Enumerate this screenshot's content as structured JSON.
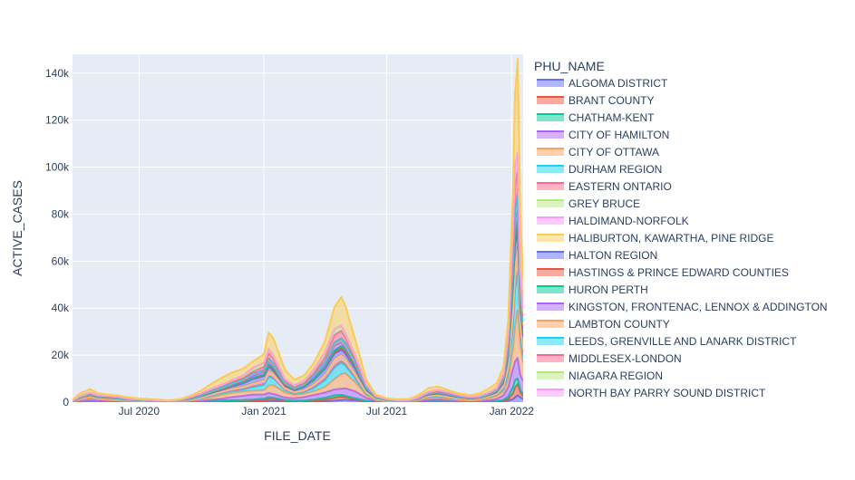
{
  "chart_data": {
    "type": "area",
    "stacked": true,
    "xlabel": "FILE_DATE",
    "ylabel": "ACTIVE_CASES",
    "x_ticks": [
      {
        "label": "Jul 2020",
        "date": "2020-07-01"
      },
      {
        "label": "Jan 2021",
        "date": "2021-01-01"
      },
      {
        "label": "Jul 2021",
        "date": "2021-07-01"
      },
      {
        "label": "Jan 2022",
        "date": "2022-01-01"
      }
    ],
    "xlim": [
      "2020-03-25",
      "2022-01-18"
    ],
    "y_ticks": [
      {
        "label": "0",
        "value": 0
      },
      {
        "label": "20k",
        "value": 20000
      },
      {
        "label": "40k",
        "value": 40000
      },
      {
        "label": "60k",
        "value": 60000
      },
      {
        "label": "80k",
        "value": 80000
      },
      {
        "label": "100k",
        "value": 100000
      },
      {
        "label": "120k",
        "value": 120000
      },
      {
        "label": "140k",
        "value": 140000
      }
    ],
    "ylim": [
      0,
      148000
    ],
    "grid": true,
    "legend": {
      "title": "PHU_NAME",
      "placement": "right"
    },
    "total": {
      "dates": [
        "2020-03-25",
        "2020-04-05",
        "2020-04-20",
        "2020-05-01",
        "2020-05-15",
        "2020-06-01",
        "2020-06-15",
        "2020-07-01",
        "2020-07-15",
        "2020-08-01",
        "2020-08-15",
        "2020-09-01",
        "2020-09-15",
        "2020-10-01",
        "2020-10-15",
        "2020-11-01",
        "2020-11-15",
        "2020-12-01",
        "2020-12-15",
        "2021-01-01",
        "2021-01-08",
        "2021-01-15",
        "2021-02-01",
        "2021-02-15",
        "2021-03-01",
        "2021-03-15",
        "2021-04-01",
        "2021-04-15",
        "2021-04-25",
        "2021-05-01",
        "2021-05-15",
        "2021-06-01",
        "2021-06-15",
        "2021-07-01",
        "2021-07-15",
        "2021-08-01",
        "2021-08-15",
        "2021-09-01",
        "2021-09-15",
        "2021-10-01",
        "2021-10-15",
        "2021-11-01",
        "2021-11-15",
        "2021-12-01",
        "2021-12-10",
        "2021-12-20",
        "2021-12-27",
        "2022-01-03",
        "2022-01-06",
        "2022-01-10",
        "2022-01-14",
        "2022-01-18"
      ],
      "values": [
        1000,
        3500,
        5500,
        4000,
        3600,
        3000,
        2000,
        1500,
        1300,
        1000,
        800,
        1500,
        3000,
        5000,
        7500,
        10000,
        12500,
        15000,
        19000,
        22000,
        30000,
        26000,
        13000,
        9500,
        12000,
        18000,
        28000,
        41000,
        43000,
        39000,
        27000,
        10000,
        3500,
        1800,
        1200,
        1200,
        2500,
        6000,
        7000,
        5500,
        4000,
        3000,
        3500,
        6000,
        8000,
        16000,
        38000,
        98000,
        132000,
        140000,
        75000,
        52000
      ]
    },
    "series": [
      {
        "name": "ALGOMA DISTRICT",
        "color": "#636efa",
        "share": 0.02
      },
      {
        "name": "BRANT COUNTY",
        "color": "#EF553B",
        "share": 0.025
      },
      {
        "name": "CHATHAM-KENT",
        "color": "#00cc96",
        "share": 0.02
      },
      {
        "name": "CITY OF HAMILTON",
        "color": "#ab63fa",
        "share": 0.09
      },
      {
        "name": "CITY OF OTTAWA",
        "color": "#FFA15A",
        "share": 0.12
      },
      {
        "name": "DURHAM REGION",
        "color": "#19d3f3",
        "share": 0.09
      },
      {
        "name": "EASTERN ONTARIO",
        "color": "#FF6692",
        "share": 0.03
      },
      {
        "name": "GREY BRUCE",
        "color": "#B6E880",
        "share": 0.02
      },
      {
        "name": "HALDIMAND-NORFOLK",
        "color": "#FF97FF",
        "share": 0.015
      },
      {
        "name": "HALIBURTON, KAWARTHA, PINE RIDGE",
        "color": "#FECB52",
        "share": 0.02
      },
      {
        "name": "HALTON REGION",
        "color": "#636efa",
        "share": 0.07
      },
      {
        "name": "HASTINGS & PRINCE EDWARD COUNTIES",
        "color": "#EF553B",
        "share": 0.02
      },
      {
        "name": "HURON PERTH",
        "color": "#00cc96",
        "share": 0.015
      },
      {
        "name": "KINGSTON, FRONTENAC, LENNOX & ADDINGTON",
        "color": "#ab63fa",
        "share": 0.04
      },
      {
        "name": "LAMBTON COUNTY",
        "color": "#FFA15A",
        "share": 0.02
      },
      {
        "name": "LEEDS, GRENVILLE AND LANARK DISTRICT",
        "color": "#19d3f3",
        "share": 0.02
      },
      {
        "name": "MIDDLESEX-LONDON",
        "color": "#FF6692",
        "share": 0.06
      },
      {
        "name": "NIAGARA REGION",
        "color": "#B6E880",
        "share": 0.05
      },
      {
        "name": "NORTH BAY PARRY SOUND DISTRICT",
        "color": "#FF97FF",
        "share": 0.015
      },
      {
        "name": "",
        "color": "#FECB52",
        "share": 0.22
      }
    ]
  }
}
